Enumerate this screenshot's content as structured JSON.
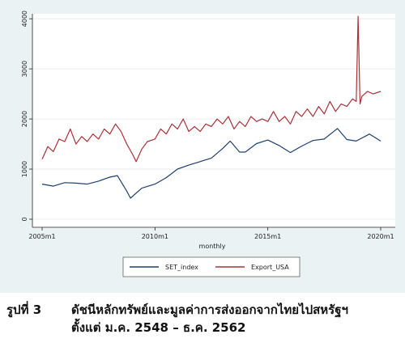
{
  "chart_data": {
    "type": "line",
    "xlabel": "monthly",
    "ylabel": "",
    "x_ticks": [
      "2005m1",
      "2010m1",
      "2015m1",
      "2020m1"
    ],
    "y_ticks": [
      "0",
      "1000",
      "2000",
      "3000",
      "4000"
    ],
    "xlim": [
      "2005m1",
      "2020m1"
    ],
    "ylim": [
      0,
      4100
    ],
    "grid": "horizontal",
    "legend": "bottom",
    "series": [
      {
        "name": "SET_index",
        "color": "#1f3f6e",
        "x": [
          "2005m1",
          "2005m7",
          "2006m1",
          "2006m7",
          "2007m1",
          "2007m7",
          "2008m1",
          "2008m5",
          "2008m10",
          "2008m12",
          "2009m6",
          "2010m1",
          "2010m7",
          "2011m1",
          "2011m7",
          "2012m1",
          "2012m7",
          "2013m1",
          "2013m5",
          "2013m10",
          "2014m1",
          "2014m7",
          "2015m1",
          "2015m7",
          "2016m1",
          "2016m7",
          "2017m1",
          "2017m7",
          "2018m1",
          "2018m2",
          "2018m7",
          "2018m12",
          "2019m7",
          "2020m1"
        ],
        "values": [
          700,
          660,
          730,
          720,
          700,
          760,
          840,
          870,
          560,
          420,
          620,
          700,
          830,
          1000,
          1080,
          1150,
          1220,
          1410,
          1560,
          1340,
          1340,
          1510,
          1580,
          1470,
          1330,
          1460,
          1570,
          1600,
          1780,
          1810,
          1590,
          1560,
          1700,
          1560
        ]
      },
      {
        "name": "Export_USA",
        "color": "#a8323a",
        "x": [
          "2005m1",
          "2005m4",
          "2005m7",
          "2005m10",
          "2006m1",
          "2006m4",
          "2006m7",
          "2006m10",
          "2007m1",
          "2007m4",
          "2007m7",
          "2007m10",
          "2008m1",
          "2008m4",
          "2008m7",
          "2008m10",
          "2009m1",
          "2009m3",
          "2009m6",
          "2009m9",
          "2010m1",
          "2010m4",
          "2010m7",
          "2010m10",
          "2011m1",
          "2011m4",
          "2011m7",
          "2011m10",
          "2012m1",
          "2012m4",
          "2012m7",
          "2012m10",
          "2013m1",
          "2013m4",
          "2013m7",
          "2013m10",
          "2014m1",
          "2014m4",
          "2014m7",
          "2014m10",
          "2015m1",
          "2015m4",
          "2015m7",
          "2015m10",
          "2016m1",
          "2016m4",
          "2016m7",
          "2016m10",
          "2017m1",
          "2017m4",
          "2017m7",
          "2017m10",
          "2018m1",
          "2018m4",
          "2018m7",
          "2018m10",
          "2018m12",
          "2019m1",
          "2019m2",
          "2019m3",
          "2019m6",
          "2019m9",
          "2020m1"
        ],
        "values": [
          1200,
          1450,
          1350,
          1600,
          1550,
          1800,
          1500,
          1650,
          1550,
          1700,
          1600,
          1800,
          1700,
          1900,
          1750,
          1500,
          1300,
          1150,
          1400,
          1550,
          1600,
          1800,
          1700,
          1900,
          1800,
          2000,
          1750,
          1850,
          1750,
          1900,
          1850,
          2000,
          1900,
          2050,
          1800,
          1950,
          1850,
          2050,
          1950,
          2000,
          1950,
          2150,
          1950,
          2050,
          1900,
          2150,
          2050,
          2200,
          2050,
          2250,
          2100,
          2350,
          2150,
          2300,
          2250,
          2400,
          2350,
          4050,
          2300,
          2450,
          2550,
          2500,
          2550
        ]
      }
    ]
  },
  "caption": {
    "label": "รูปที่ 3",
    "line1": "ดัชนีหลักทรัพย์และมูลค่าการส่งออกจากไทยไปสหรัฐฯ",
    "line2": "ตั้งแต่ ม.ค. 2548 – ธ.ค. 2562"
  }
}
